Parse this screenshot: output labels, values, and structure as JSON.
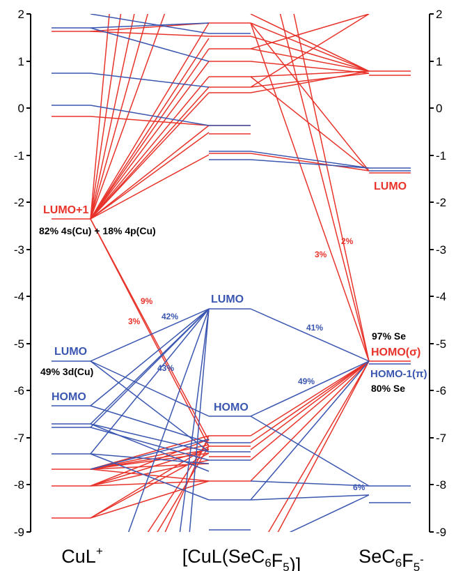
{
  "y_axis": {
    "min": -9,
    "max": 2,
    "ticks": [
      "2",
      "1",
      "0",
      "-1",
      "-2",
      "-3",
      "-4",
      "-5",
      "-6",
      "-7",
      "-8",
      "-9"
    ]
  },
  "fragments": {
    "left": "CuL+",
    "middle": "[CuL(SeC6F5)]",
    "right": "SeC6F5-"
  },
  "colors": {
    "red": "#e8332a",
    "blue": "#3a56b0",
    "black": "#000000"
  },
  "orbital_labels": {
    "left_lumo1": "LUMO+1",
    "left_lumo1_comp": "82% 4s(Cu) + 18% 4p(Cu)",
    "left_lumo": "LUMO",
    "left_lumo_comp": "49% 3d(Cu)",
    "left_homo": "HOMO",
    "mid_lumo": "LUMO",
    "mid_homo": "HOMO",
    "right_lumo": "LUMO",
    "right_homo_sigma_comp": "97% Se",
    "right_homo_sigma": "HOMO(σ)",
    "right_homo1_pi": "HOMO-1(π)",
    "right_homo1_comp": "80% Se"
  },
  "contributions": {
    "c9": "9%",
    "c3a": "3%",
    "c42": "42%",
    "c43": "43%",
    "c41": "41%",
    "c49": "49%",
    "c3b": "3%",
    "c2": "2%",
    "c6": "6%"
  }
}
